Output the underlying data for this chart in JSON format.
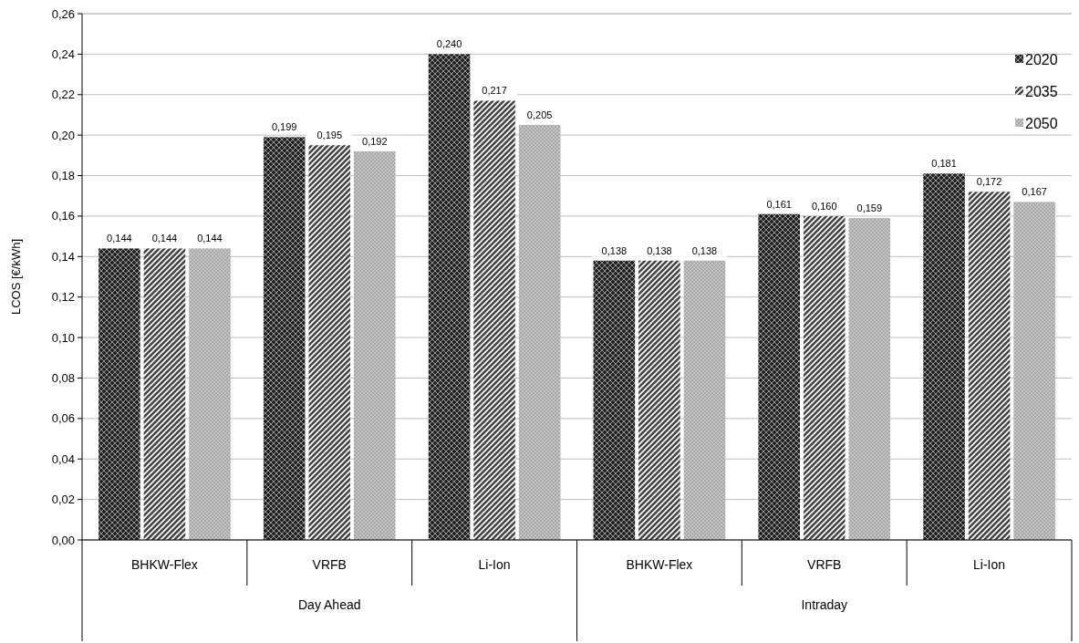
{
  "chart_data": {
    "type": "bar",
    "ylabel": "LCOS [€/kWh]",
    "categories": [
      "BHKW-Flex",
      "VRFB",
      "Li-Ion",
      "BHKW-Flex",
      "VRFB",
      "Li-Ion"
    ],
    "annotations": [
      "Day Ahead",
      "Intraday"
    ],
    "series": [
      {
        "name": "2020",
        "color": "#222222",
        "values": [
          0.144,
          0.199,
          0.24,
          0.138,
          0.161,
          0.181
        ],
        "value_labels": [
          "0,144",
          "0,199",
          "0,240",
          "0,138",
          "0,161",
          "0,181"
        ]
      },
      {
        "name": "2035",
        "color": "#444444",
        "values": [
          0.144,
          0.195,
          0.217,
          0.138,
          0.16,
          0.172
        ],
        "value_labels": [
          "0,144",
          "0,195",
          "0,217",
          "0,138",
          "0,160",
          "0,172"
        ]
      },
      {
        "name": "2050",
        "color": "#a6a6a6",
        "values": [
          0.144,
          0.192,
          0.205,
          0.138,
          0.159,
          0.167
        ],
        "value_labels": [
          "0,144",
          "0,192",
          "0,205",
          "0,138",
          "0,159",
          "0,167"
        ]
      }
    ],
    "ylim": [
      0,
      0.26
    ],
    "yticks": [
      {
        "value": 0,
        "label": "0,00"
      },
      {
        "value": 0.02,
        "label": "0,02"
      },
      {
        "value": 0.04,
        "label": "0,04"
      },
      {
        "value": 0.06,
        "label": "0,06"
      },
      {
        "value": 0.08,
        "label": "0,08"
      },
      {
        "value": 0.1,
        "label": "0,10"
      },
      {
        "value": 0.12,
        "label": "0,12"
      },
      {
        "value": 0.14,
        "label": "0,14"
      },
      {
        "value": 0.16,
        "label": "0,16"
      },
      {
        "value": 0.18,
        "label": "0,18"
      },
      {
        "value": 0.2,
        "label": "0,20"
      },
      {
        "value": 0.22,
        "label": "0,22"
      },
      {
        "value": 0.24,
        "label": "0,24"
      },
      {
        "value": 0.26,
        "label": "0,26"
      }
    ],
    "grid": "y",
    "legend": "top right"
  }
}
